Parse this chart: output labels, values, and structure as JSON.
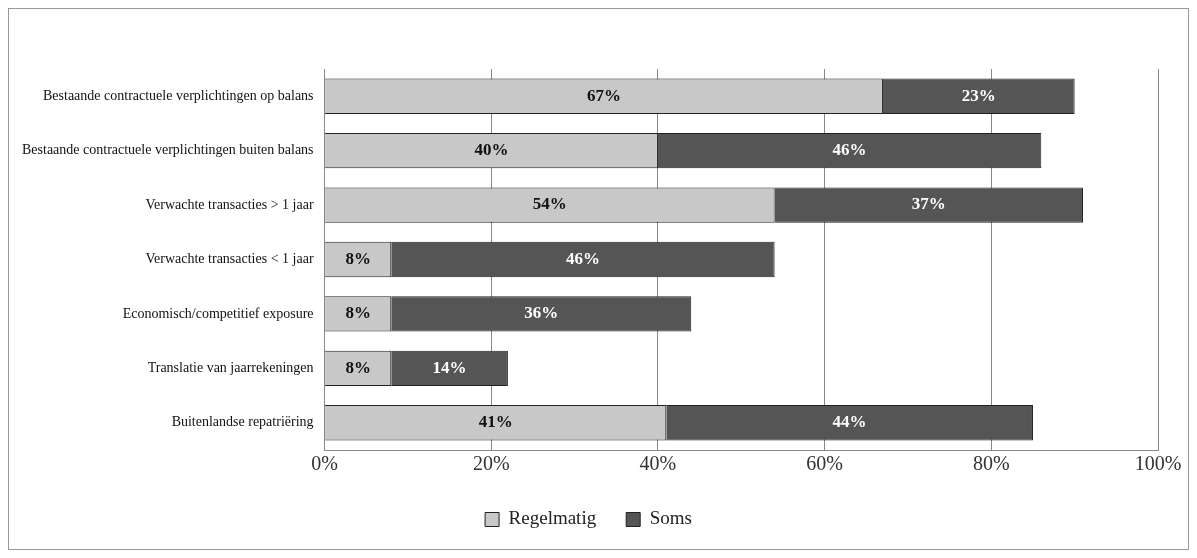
{
  "chart_data": {
    "type": "bar",
    "orientation": "horizontal",
    "stacked": true,
    "categories": [
      "Bestaande contractuele verplichtingen op balans",
      "Bestaande contractuele verplichtingen buiten balans",
      "Verwachte transacties > 1 jaar",
      "Verwachte transacties < 1 jaar",
      "Economisch/competitief exposure",
      "Translatie van jaarrekeningen",
      "Buitenlandse repatriëring"
    ],
    "series": [
      {
        "name": "Regelmatig",
        "color": "#c8c8c8",
        "values": [
          67,
          40,
          54,
          8,
          8,
          8,
          41
        ],
        "value_labels": [
          "67%",
          "40%",
          "54%",
          "8%",
          "8%",
          "8%",
          "41%"
        ]
      },
      {
        "name": "Soms",
        "color": "#555555",
        "values": [
          23,
          46,
          37,
          46,
          36,
          14,
          44
        ],
        "value_labels": [
          "23%",
          "46%",
          "37%",
          "46%",
          "36%",
          "14%",
          "44%"
        ]
      }
    ],
    "xlim": [
      0,
      100
    ],
    "xticks": [
      {
        "value": 0,
        "label": "0%"
      },
      {
        "value": 20,
        "label": "20%"
      },
      {
        "value": 40,
        "label": "40%"
      },
      {
        "value": 60,
        "label": "60%"
      },
      {
        "value": 80,
        "label": "80%"
      },
      {
        "value": 100,
        "label": "100%"
      }
    ],
    "grid": "x",
    "legend": "bottom"
  }
}
